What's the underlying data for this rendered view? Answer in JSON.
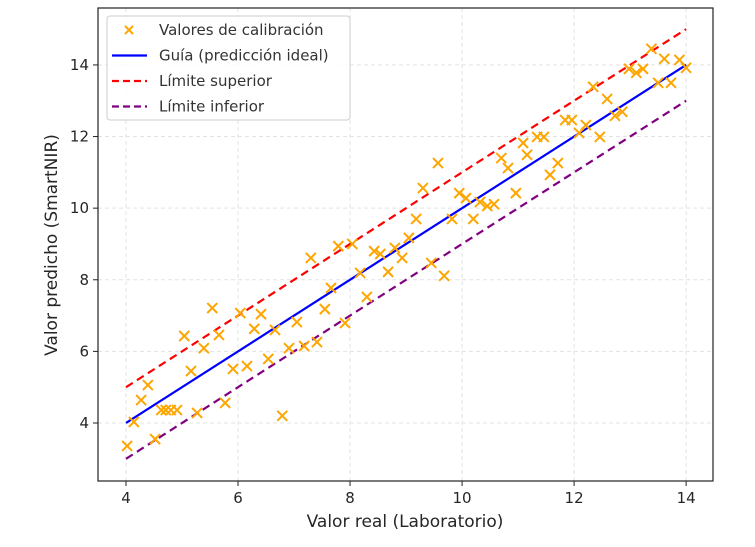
{
  "chart_data": {
    "type": "scatter",
    "title": "",
    "xlabel": "Valor real (Laboratorio)",
    "ylabel": "Valor predicho (SmartNIR)",
    "xlim": [
      3.5,
      14.48
    ],
    "ylim": [
      2.38,
      15.59
    ],
    "xticks": [
      4,
      6,
      8,
      10,
      12,
      14
    ],
    "yticks": [
      4,
      6,
      8,
      10,
      12,
      14
    ],
    "grid": true,
    "legend_placement": "top-left",
    "series": [
      {
        "name": "Valores de calibración",
        "kind": "scatter",
        "marker": "x",
        "color": "#FFA500",
        "points": [
          [
            4.02,
            3.36
          ],
          [
            4.14,
            4.03
          ],
          [
            4.27,
            4.64
          ],
          [
            4.39,
            5.06
          ],
          [
            4.52,
            3.55
          ],
          [
            4.63,
            4.36
          ],
          [
            4.71,
            4.36
          ],
          [
            4.8,
            4.36
          ],
          [
            4.91,
            4.36
          ],
          [
            5.04,
            6.43
          ],
          [
            5.16,
            5.45
          ],
          [
            5.27,
            4.28
          ],
          [
            5.39,
            6.09
          ],
          [
            5.54,
            7.21
          ],
          [
            5.66,
            6.46
          ],
          [
            5.77,
            4.56
          ],
          [
            5.91,
            5.51
          ],
          [
            6.04,
            7.07
          ],
          [
            6.16,
            5.59
          ],
          [
            6.29,
            6.63
          ],
          [
            6.41,
            7.04
          ],
          [
            6.54,
            5.79
          ],
          [
            6.66,
            6.6
          ],
          [
            6.79,
            4.2
          ],
          [
            6.91,
            6.09
          ],
          [
            7.05,
            6.82
          ],
          [
            7.18,
            6.15
          ],
          [
            7.3,
            8.61
          ],
          [
            7.41,
            6.26
          ],
          [
            7.55,
            7.18
          ],
          [
            7.66,
            7.77
          ],
          [
            7.79,
            8.94
          ],
          [
            7.91,
            6.79
          ],
          [
            8.04,
            9.0
          ],
          [
            8.18,
            8.19
          ],
          [
            8.3,
            7.52
          ],
          [
            8.43,
            8.8
          ],
          [
            8.54,
            8.72
          ],
          [
            8.68,
            8.22
          ],
          [
            8.8,
            8.89
          ],
          [
            8.93,
            8.61
          ],
          [
            9.05,
            9.17
          ],
          [
            9.18,
            9.7
          ],
          [
            9.3,
            10.56
          ],
          [
            9.45,
            8.47
          ],
          [
            9.57,
            11.26
          ],
          [
            9.68,
            8.11
          ],
          [
            9.82,
            9.7
          ],
          [
            9.95,
            10.42
          ],
          [
            10.07,
            10.28
          ],
          [
            10.2,
            9.7
          ],
          [
            10.32,
            10.17
          ],
          [
            10.45,
            10.06
          ],
          [
            10.57,
            10.11
          ],
          [
            10.7,
            11.4
          ],
          [
            10.82,
            11.12
          ],
          [
            10.96,
            10.42
          ],
          [
            11.09,
            11.82
          ],
          [
            11.16,
            11.49
          ],
          [
            11.34,
            11.99
          ],
          [
            11.46,
            11.99
          ],
          [
            11.57,
            10.93
          ],
          [
            11.71,
            11.26
          ],
          [
            11.84,
            12.46
          ],
          [
            11.96,
            12.46
          ],
          [
            12.09,
            12.1
          ],
          [
            12.21,
            12.32
          ],
          [
            12.34,
            13.39
          ],
          [
            12.46,
            11.99
          ],
          [
            12.59,
            13.05
          ],
          [
            12.73,
            12.58
          ],
          [
            12.86,
            12.69
          ],
          [
            12.98,
            13.89
          ],
          [
            13.11,
            13.78
          ],
          [
            13.23,
            13.89
          ],
          [
            13.38,
            14.45
          ],
          [
            13.5,
            13.5
          ],
          [
            13.61,
            14.17
          ],
          [
            13.73,
            13.5
          ],
          [
            13.88,
            14.14
          ],
          [
            14.0,
            13.92
          ]
        ]
      },
      {
        "name": "Guía (predicción ideal)",
        "kind": "line",
        "style": "solid",
        "color": "#0000FF",
        "points": [
          [
            4,
            4
          ],
          [
            14,
            14
          ]
        ]
      },
      {
        "name": "Límite superior",
        "kind": "line",
        "style": "dashed",
        "color": "#FF0000",
        "points": [
          [
            4,
            5
          ],
          [
            14,
            15
          ]
        ]
      },
      {
        "name": "Límite inferior",
        "kind": "line",
        "style": "dashed",
        "color": "#800080",
        "points": [
          [
            4,
            3
          ],
          [
            14,
            13
          ]
        ]
      }
    ]
  }
}
